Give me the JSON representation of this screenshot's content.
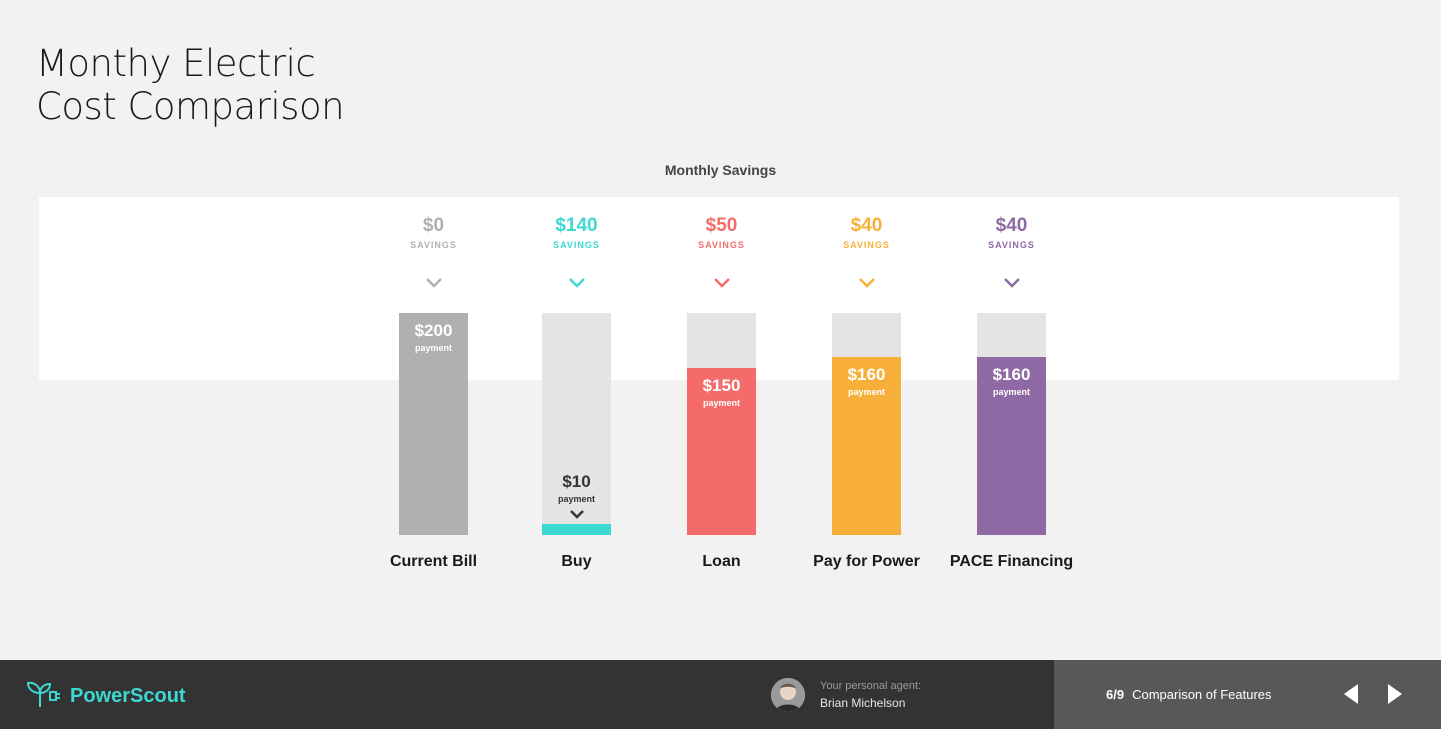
{
  "title_line1": "Monthy Electric",
  "title_line2": "Cost Comparison",
  "chart_data": {
    "type": "bar",
    "title": "Monthly Savings",
    "categories": [
      "Current Bill",
      "Buy",
      "Loan",
      "Pay for Power",
      "PACE Financing"
    ],
    "payments": [
      200,
      10,
      150,
      160,
      160
    ],
    "savings": [
      0,
      140,
      50,
      40,
      40
    ],
    "ylim": [
      0,
      200
    ],
    "payment_labels": [
      "$200",
      "$10",
      "$150",
      "$160",
      "$160"
    ],
    "savings_labels": [
      "$0",
      "$140",
      "$50",
      "$40",
      "$40"
    ],
    "payment_word": "payment",
    "savings_word": "SAVINGS",
    "colors": [
      "#b0b0b0",
      "#3dd8d2",
      "#f56b6b",
      "#f8af3a",
      "#8e69a3"
    ]
  },
  "footer": {
    "brand": "PowerScout",
    "agent_label": "Your personal agent:",
    "agent_name": "Brian Michelson",
    "page_indicator": "6/9",
    "section_title": "Comparison of Features"
  }
}
